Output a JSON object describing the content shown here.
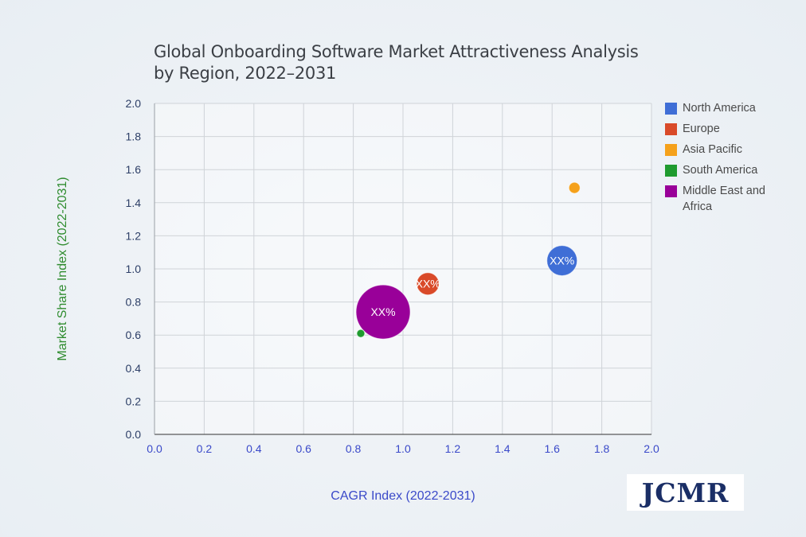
{
  "chart_data": {
    "type": "bubble",
    "title_lines": [
      "Global Onboarding Software Market Attractiveness Analysis",
      "by Region, 2022–2031"
    ],
    "xlabel": "CAGR Index (2022-2031)",
    "ylabel": "Market Share Index (2022-2031)",
    "xlim": [
      0,
      2.0
    ],
    "ylim": [
      0,
      2.0
    ],
    "xticks": [
      "0.0",
      "0.2",
      "0.4",
      "0.6",
      "0.8",
      "1.0",
      "1.2",
      "1.4",
      "1.6",
      "1.8",
      "2.0"
    ],
    "yticks": [
      "0.0",
      "0.2",
      "0.4",
      "0.6",
      "0.8",
      "1.0",
      "1.2",
      "1.4",
      "1.6",
      "1.8",
      "2.0"
    ],
    "grid": true,
    "legend_position": "right",
    "series": [
      {
        "name": "North America",
        "color": "#3f6ed6",
        "x": 1.64,
        "y": 1.05,
        "size": 19,
        "label": "XX%"
      },
      {
        "name": "Europe",
        "color": "#d94a29",
        "x": 1.1,
        "y": 0.91,
        "size": 14,
        "label": "XX%"
      },
      {
        "name": "Asia Pacific",
        "color": "#f5a11b",
        "x": 1.69,
        "y": 1.49,
        "size": 7,
        "label": ""
      },
      {
        "name": "South America",
        "color": "#1f9b2f",
        "x": 0.83,
        "y": 0.61,
        "size": 5,
        "label": ""
      },
      {
        "name": "Middle East and Africa",
        "color": "#990099",
        "x": 0.92,
        "y": 0.74,
        "size": 34,
        "label": "XX%"
      }
    ]
  },
  "branding": {
    "logo_text": "JCMR"
  },
  "colors": {
    "axis_label_x": "#3a49c9",
    "axis_label_y": "#2f8c2f",
    "tick_x": "#3a49c9",
    "tick_y": "#2c3e66"
  }
}
